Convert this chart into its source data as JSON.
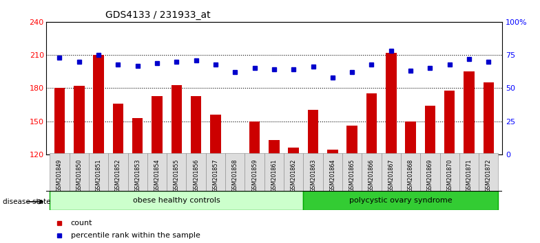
{
  "title": "GDS4133 / 231933_at",
  "samples": [
    "GSM201849",
    "GSM201850",
    "GSM201851",
    "GSM201852",
    "GSM201853",
    "GSM201854",
    "GSM201855",
    "GSM201856",
    "GSM201857",
    "GSM201858",
    "GSM201859",
    "GSM201861",
    "GSM201862",
    "GSM201863",
    "GSM201864",
    "GSM201865",
    "GSM201866",
    "GSM201867",
    "GSM201868",
    "GSM201869",
    "GSM201870",
    "GSM201871",
    "GSM201872"
  ],
  "bar_values": [
    180,
    182,
    210,
    166,
    153,
    173,
    183,
    173,
    156,
    120,
    150,
    133,
    126,
    160,
    124,
    146,
    175,
    212,
    150,
    164,
    178,
    195,
    185
  ],
  "percentile_values": [
    73,
    70,
    75,
    68,
    67,
    69,
    70,
    71,
    68,
    62,
    65,
    64,
    64,
    66,
    58,
    62,
    68,
    78,
    63,
    65,
    68,
    72,
    70
  ],
  "group1_label": "obese healthy controls",
  "group1_count": 13,
  "group2_label": "polycystic ovary syndrome",
  "group2_count": 10,
  "bar_color": "#CC0000",
  "dot_color": "#0000CC",
  "group1_color": "#CCFFCC",
  "group2_color": "#33CC33",
  "left_ylim": [
    120,
    240
  ],
  "left_yticks": [
    120,
    150,
    180,
    210,
    240
  ],
  "right_ylim": [
    0,
    100
  ],
  "right_yticks": [
    0,
    25,
    50,
    75,
    100
  ],
  "right_yticklabels": [
    "0",
    "25",
    "50",
    "75",
    "100%"
  ],
  "disease_state_label": "disease state"
}
